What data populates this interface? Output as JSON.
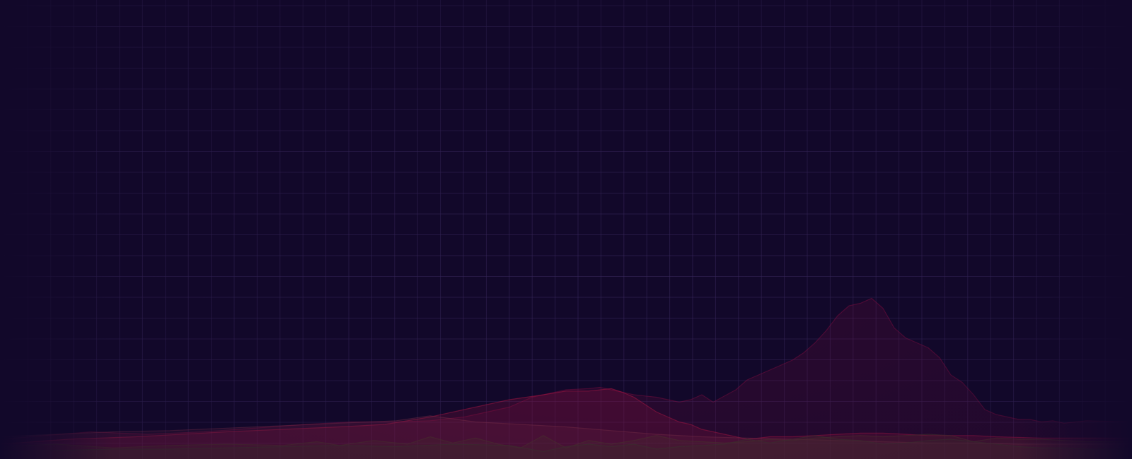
{
  "theme": {
    "background": "#12082a",
    "grid_color": "#3a2a5e"
  },
  "chart_data": {
    "type": "area",
    "title": "",
    "xlabel": "",
    "ylabel": "",
    "grid": true,
    "legend": "none",
    "axes_visible": false,
    "xlim": [
      0,
      100
    ],
    "ylim": [
      0,
      100
    ],
    "series": [
      {
        "color": "#b0104a",
        "opacity": 0.16,
        "x": [
          0,
          8,
          13,
          18,
          24,
          27,
          31,
          35,
          38,
          41,
          43,
          45,
          46,
          47,
          49,
          50,
          52,
          53,
          54,
          55,
          56,
          57,
          58,
          59,
          60,
          61,
          62,
          63,
          65,
          66,
          67,
          68,
          69,
          70,
          71,
          72,
          73,
          74,
          75,
          76,
          77,
          78,
          79,
          80,
          81,
          82,
          83,
          84,
          85,
          86,
          87,
          88,
          89,
          90,
          91,
          92,
          93,
          94,
          96,
          100
        ],
        "values": [
          8,
          11,
          10,
          11,
          13,
          14,
          15,
          15,
          15.5,
          17,
          19,
          21,
          23,
          25,
          27,
          28,
          28.5,
          29,
          28,
          27,
          26,
          25.5,
          25,
          24,
          23,
          24,
          26,
          23,
          28,
          32,
          34,
          36,
          38,
          40,
          43,
          47,
          52,
          58,
          62,
          63,
          65,
          61,
          53,
          49,
          47,
          45,
          41,
          34,
          31,
          26,
          20,
          18,
          17,
          16,
          16,
          15,
          15.5,
          14.5,
          15.5,
          15
        ]
      },
      {
        "color": "#c81848",
        "opacity": 0.22,
        "x": [
          0,
          6,
          12,
          16,
          20,
          25,
          30,
          34,
          38,
          40,
          42,
          45,
          48,
          50,
          52,
          54,
          55,
          56,
          57,
          58,
          59,
          60,
          61,
          62,
          63,
          64,
          65,
          66,
          67,
          68,
          70,
          72,
          74,
          76,
          78,
          80,
          82,
          86,
          88,
          92,
          96,
          100
        ],
        "values": [
          6,
          8,
          9,
          10,
          11,
          12,
          13,
          14,
          17,
          19,
          21,
          24,
          26,
          27.5,
          27.5,
          28.5,
          27,
          25,
          22,
          19,
          17,
          15,
          14,
          12,
          11,
          10,
          9,
          8,
          8.5,
          9,
          9,
          9.5,
          10,
          10.5,
          10.5,
          10,
          9.5,
          9.5,
          9,
          8.5,
          8.5,
          8.5
        ]
      },
      {
        "color": "#9a3a52",
        "opacity": 0.18,
        "x": [
          0,
          5,
          10,
          15,
          20,
          25,
          30,
          35,
          38,
          42,
          46,
          50,
          54,
          58,
          62,
          66,
          70,
          74,
          78,
          82,
          86,
          90,
          94,
          100
        ],
        "values": [
          9,
          10,
          11,
          11.5,
          12.5,
          13.5,
          14.5,
          15.5,
          17.5,
          15,
          14,
          13,
          11.5,
          10,
          9,
          8.5,
          8,
          7.5,
          7,
          6.5,
          6.5,
          6,
          6,
          6
        ]
      },
      {
        "color": "#5a3a2e",
        "opacity": 0.26,
        "x": [
          0,
          5,
          10,
          15,
          20,
          25,
          28,
          30,
          33,
          36,
          38,
          40,
          42,
          44,
          46,
          48,
          50,
          52,
          54,
          56,
          58,
          60,
          62,
          64,
          66,
          68,
          70,
          72,
          74,
          76,
          78,
          80,
          82,
          84,
          86,
          88,
          90,
          92,
          94,
          96,
          98,
          100
        ],
        "values": [
          5,
          6,
          4.5,
          5.5,
          6,
          5.5,
          7,
          5.5,
          7.5,
          6,
          9,
          6.5,
          8.5,
          6,
          4.5,
          9.5,
          4.5,
          7.5,
          6,
          7.5,
          9.5,
          7.5,
          7,
          6.5,
          7,
          8,
          7.5,
          8.5,
          9,
          9.5,
          9,
          9.5,
          10,
          9.5,
          7,
          8.5,
          8,
          8,
          7.5,
          7,
          7,
          7
        ]
      },
      {
        "color": "#4a3a30",
        "opacity": 0.28,
        "x": [
          0,
          5,
          10,
          15,
          20,
          25,
          30,
          35,
          40,
          45,
          48,
          50,
          52,
          54,
          56,
          58,
          60,
          62,
          64,
          66,
          68,
          70,
          72,
          74,
          76,
          78,
          80,
          82,
          84,
          86,
          88,
          90,
          92,
          94,
          96,
          100
        ],
        "values": [
          3,
          3.5,
          4,
          4,
          4.5,
          5,
          5.5,
          5,
          6,
          5.5,
          3,
          5,
          6,
          5,
          6,
          4,
          5,
          5.5,
          6,
          8,
          6.5,
          8,
          9.5,
          8,
          7.5,
          6,
          6.5,
          7.5,
          8,
          7,
          6,
          5,
          4.5,
          4.5,
          4,
          4
        ]
      }
    ]
  }
}
